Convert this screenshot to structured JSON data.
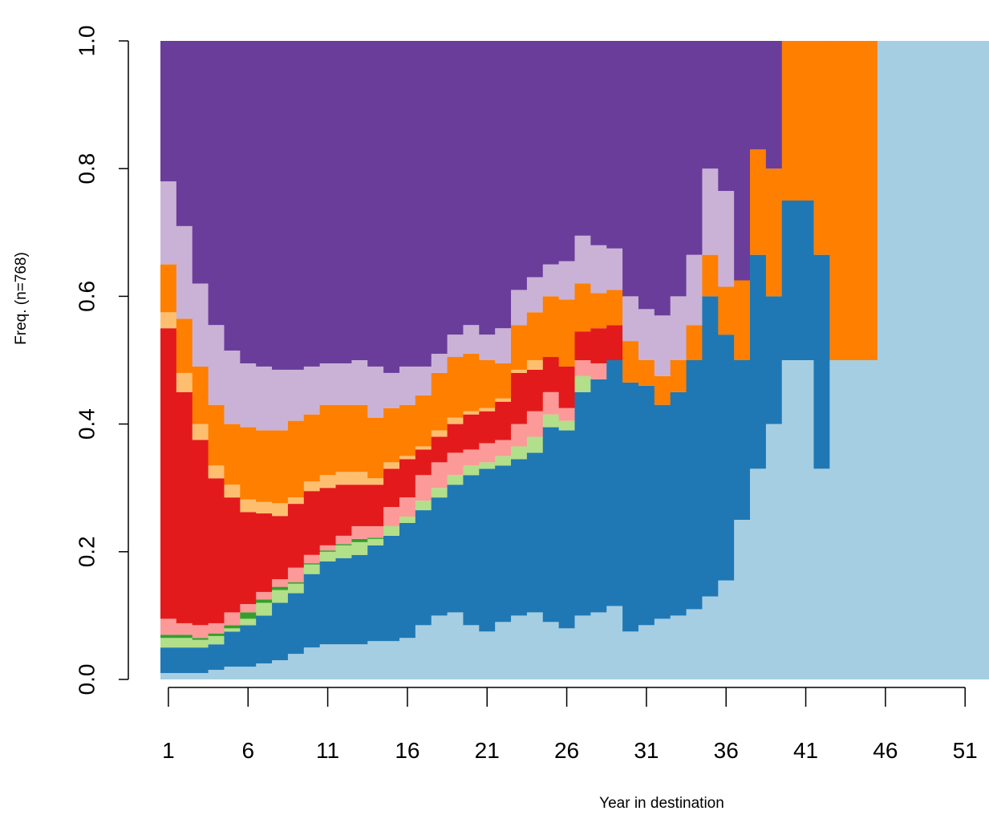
{
  "chart_data": {
    "type": "bar",
    "stacked": true,
    "x": [
      1,
      2,
      3,
      4,
      5,
      6,
      7,
      8,
      9,
      10,
      11,
      12,
      13,
      14,
      15,
      16,
      17,
      18,
      19,
      20,
      21,
      22,
      23,
      24,
      25,
      26,
      27,
      28,
      29,
      30,
      31,
      32,
      33,
      34,
      35,
      36,
      37,
      38,
      39,
      40,
      41,
      42,
      43,
      44,
      45,
      46,
      47,
      48,
      49,
      50,
      51,
      52
    ],
    "xlabel": "Year in destination",
    "ylabel": "Freq. (n=768)",
    "xlim": [
      0.5,
      52.5
    ],
    "xticks": [
      1,
      6,
      11,
      16,
      21,
      26,
      31,
      36,
      41,
      46,
      51
    ],
    "ylim": [
      0,
      1
    ],
    "yticks": [
      {
        "value": 0,
        "label": "0.0"
      },
      0.2,
      0.4,
      0.6,
      0.8,
      {
        "value": 1,
        "label": "1.0"
      }
    ],
    "series": [
      {
        "color": "#A6CEE3",
        "values": [
          0.01,
          0.01,
          0.01,
          0.015,
          0.02,
          0.02,
          0.025,
          0.03,
          0.04,
          0.05,
          0.055,
          0.055,
          0.055,
          0.06,
          0.06,
          0.065,
          0.085,
          0.1,
          0.105,
          0.085,
          0.075,
          0.09,
          0.1,
          0.105,
          0.09,
          0.08,
          0.1,
          0.105,
          0.115,
          0.075,
          0.085,
          0.095,
          0.1,
          0.11,
          0.13,
          0.155,
          0.25,
          0.33,
          0.4,
          0.5,
          0.5,
          0.33,
          0.5,
          0.5,
          0.5,
          1,
          1,
          1,
          1,
          1,
          1,
          1
        ]
      },
      {
        "color": "#1F78B4",
        "values": [
          0.04,
          0.04,
          0.04,
          0.04,
          0.055,
          0.065,
          0.075,
          0.09,
          0.095,
          0.115,
          0.13,
          0.135,
          0.14,
          0.15,
          0.165,
          0.18,
          0.18,
          0.185,
          0.2,
          0.235,
          0.255,
          0.245,
          0.245,
          0.25,
          0.305,
          0.31,
          0.35,
          0.365,
          0.385,
          0.39,
          0.375,
          0.335,
          0.35,
          0.39,
          0.47,
          0.385,
          0.25,
          0.335,
          0.2,
          0.25,
          0.25,
          0.335,
          0,
          0,
          0,
          0,
          0,
          0,
          0,
          0,
          0,
          0
        ]
      },
      {
        "color": "#B2DF8A",
        "values": [
          0.015,
          0.015,
          0.012,
          0.013,
          0.005,
          0.01,
          0.02,
          0.02,
          0.015,
          0.015,
          0.015,
          0.02,
          0.02,
          0.01,
          0.015,
          0.01,
          0.015,
          0.015,
          0.015,
          0.015,
          0.01,
          0.015,
          0.02,
          0.025,
          0.02,
          0.015,
          0.025,
          0,
          0,
          0,
          0,
          0,
          0,
          0,
          0,
          0,
          0,
          0,
          0,
          0,
          0,
          0,
          0,
          0,
          0,
          0,
          0,
          0,
          0,
          0,
          0,
          0
        ]
      },
      {
        "color": "#33A02C",
        "values": [
          0.005,
          0.005,
          0.003,
          0.004,
          0.005,
          0.01,
          0.005,
          0.005,
          0.002,
          0.002,
          0.002,
          0.002,
          0.005,
          0.002,
          0,
          0,
          0,
          0,
          0,
          0,
          0,
          0,
          0,
          0,
          0,
          0,
          0,
          0,
          0,
          0,
          0,
          0,
          0,
          0,
          0,
          0,
          0,
          0,
          0,
          0,
          0,
          0,
          0,
          0,
          0,
          0,
          0,
          0,
          0,
          0,
          0,
          0
        ]
      },
      {
        "color": "#FB9A99",
        "values": [
          0.025,
          0.018,
          0.02,
          0.016,
          0.02,
          0.013,
          0.012,
          0.012,
          0.023,
          0.013,
          0.008,
          0.013,
          0.02,
          0.018,
          0.03,
          0.03,
          0.04,
          0.04,
          0.035,
          0.025,
          0.03,
          0.025,
          0.035,
          0.04,
          0.035,
          0.02,
          0.025,
          0.025,
          0,
          0,
          0,
          0,
          0,
          0,
          0,
          0,
          0,
          0,
          0,
          0,
          0,
          0,
          0,
          0,
          0,
          0,
          0,
          0,
          0,
          0,
          0,
          0
        ]
      },
      {
        "color": "#E31A1C",
        "values": [
          0.455,
          0.362,
          0.29,
          0.227,
          0.18,
          0.144,
          0.123,
          0.099,
          0.1,
          0.1,
          0.09,
          0.08,
          0.065,
          0.065,
          0.06,
          0.06,
          0.04,
          0.04,
          0.045,
          0.055,
          0.05,
          0.06,
          0.08,
          0.065,
          0.055,
          0.065,
          0.045,
          0.055,
          0.055,
          0,
          0,
          0,
          0,
          0,
          0,
          0,
          0,
          0,
          0,
          0,
          0,
          0,
          0,
          0,
          0,
          0,
          0,
          0,
          0,
          0,
          0,
          0
        ]
      },
      {
        "color": "#FDBF6F",
        "values": [
          0.025,
          0.03,
          0.025,
          0.02,
          0.02,
          0.02,
          0.018,
          0.02,
          0.01,
          0.015,
          0.02,
          0.02,
          0.02,
          0.01,
          0.01,
          0.005,
          0.005,
          0.01,
          0.01,
          0.005,
          0.005,
          0.005,
          0.005,
          0.015,
          0,
          0,
          0,
          0,
          0,
          0,
          0,
          0,
          0,
          0,
          0,
          0,
          0,
          0,
          0,
          0,
          0,
          0,
          0,
          0,
          0,
          0,
          0,
          0,
          0,
          0,
          0,
          0
        ]
      },
      {
        "color": "#FF7F00",
        "values": [
          0.075,
          0.085,
          0.09,
          0.095,
          0.095,
          0.113,
          0.112,
          0.114,
          0.12,
          0.105,
          0.11,
          0.105,
          0.105,
          0.095,
          0.085,
          0.08,
          0.08,
          0.09,
          0.095,
          0.09,
          0.075,
          0.055,
          0.07,
          0.075,
          0.095,
          0.105,
          0.075,
          0.055,
          0.055,
          0.065,
          0.04,
          0.045,
          0.05,
          0.055,
          0.065,
          0.075,
          0.125,
          0.165,
          0.2,
          0.25,
          0.25,
          0.335,
          0.5,
          0.5,
          0.5,
          0,
          0,
          0,
          0,
          0,
          0,
          0
        ]
      },
      {
        "color": "#CAB2D6",
        "values": [
          0.13,
          0.145,
          0.13,
          0.125,
          0.115,
          0.1,
          0.1,
          0.095,
          0.08,
          0.075,
          0.065,
          0.065,
          0.07,
          0.08,
          0.055,
          0.06,
          0.045,
          0.03,
          0.035,
          0.045,
          0.04,
          0.055,
          0.055,
          0.055,
          0.05,
          0.06,
          0.075,
          0.075,
          0.065,
          0.07,
          0.08,
          0.095,
          0.1,
          0.11,
          0.135,
          0.15,
          0,
          0,
          0,
          0,
          0,
          0,
          0,
          0,
          0,
          0,
          0,
          0,
          0,
          0,
          0,
          0
        ]
      },
      {
        "color": "#6A3D9A",
        "values": [
          0.22,
          0.29,
          0.38,
          0.445,
          0.485,
          0.505,
          0.51,
          0.515,
          0.515,
          0.51,
          0.505,
          0.505,
          0.5,
          0.51,
          0.52,
          0.51,
          0.51,
          0.49,
          0.46,
          0.445,
          0.46,
          0.45,
          0.39,
          0.37,
          0.35,
          0.345,
          0.305,
          0.32,
          0.325,
          0.4,
          0.42,
          0.43,
          0.4,
          0.335,
          0.2,
          0.235,
          0.375,
          0.17,
          0.2,
          0,
          0,
          0,
          0,
          0,
          0,
          0,
          0,
          0,
          0,
          0,
          0,
          0
        ]
      }
    ]
  }
}
